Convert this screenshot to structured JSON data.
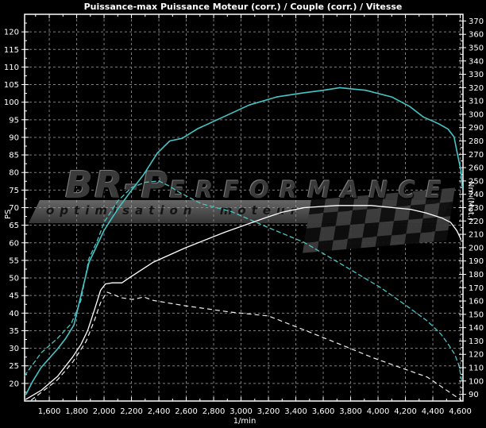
{
  "watermark": {
    "brand_prefix": "BR-P",
    "brand_suffix": "ERFORMANCE",
    "tagline": "optimisation moteur"
  },
  "colors": {
    "background": "#000000",
    "frame": "#ffffff",
    "grid": "#7d7d7d",
    "torque": "#45c6c6",
    "power": "#ffffff"
  },
  "chart_data": {
    "type": "line",
    "title": "Puissance-max Puissance Moteur (corr.) / Couple (corr.) / Vitesse",
    "x": {
      "unit": "1/min",
      "min": 1420,
      "max": 4620,
      "tick_min": 1600,
      "tick_max": 4600,
      "tick_step": 200,
      "minor_step": 100
    },
    "y_left": {
      "unit": "PS",
      "min": 15,
      "max": 125,
      "tick_min": 20,
      "tick_max": 120,
      "tick_step": 5,
      "minor_step": 2.5
    },
    "y_right": {
      "unit": "Nm (Mot.)",
      "min": 85,
      "max": 375,
      "tick_min": 90,
      "tick_max": 370,
      "tick_step": 10,
      "minor_step": 5
    },
    "grid": {
      "dash": "3 3",
      "legend": "none"
    },
    "series": [
      {
        "id": "couple-corr-solid",
        "name": "Couple (corr.)",
        "style": "solid",
        "axis": "right",
        "color": "#45c6c6",
        "width": 1.6,
        "points": [
          [
            1430,
            90
          ],
          [
            1480,
            100
          ],
          [
            1540,
            110
          ],
          [
            1600,
            117
          ],
          [
            1660,
            124
          ],
          [
            1720,
            132
          ],
          [
            1780,
            142
          ],
          [
            1840,
            168
          ],
          [
            1890,
            189
          ],
          [
            1950,
            202
          ],
          [
            2000,
            213
          ],
          [
            2100,
            229
          ],
          [
            2200,
            243
          ],
          [
            2290,
            255
          ],
          [
            2390,
            271
          ],
          [
            2480,
            280
          ],
          [
            2570,
            282
          ],
          [
            2680,
            289
          ],
          [
            2870,
            298
          ],
          [
            3060,
            307
          ],
          [
            3260,
            313
          ],
          [
            3450,
            316
          ],
          [
            3600,
            318
          ],
          [
            3720,
            320
          ],
          [
            3910,
            318
          ],
          [
            4100,
            313
          ],
          [
            4230,
            306
          ],
          [
            4330,
            298
          ],
          [
            4440,
            293
          ],
          [
            4510,
            289
          ],
          [
            4555,
            283
          ],
          [
            4580,
            270
          ],
          [
            4605,
            258
          ],
          [
            4615,
            245
          ]
        ]
      },
      {
        "id": "couple-corr-dashed",
        "name": "Couple (corr.)",
        "style": "dashed",
        "axis": "right",
        "color": "#45c6c6",
        "width": 1.3,
        "dash": "5 4",
        "points": [
          [
            1420,
            104
          ],
          [
            1540,
            121
          ],
          [
            1660,
            132
          ],
          [
            1760,
            143
          ],
          [
            1830,
            160
          ],
          [
            1890,
            192
          ],
          [
            1950,
            205
          ],
          [
            2000,
            219
          ],
          [
            2100,
            235
          ],
          [
            2200,
            245
          ],
          [
            2300,
            249
          ],
          [
            2400,
            250
          ],
          [
            2480,
            246
          ],
          [
            2540,
            242
          ],
          [
            2710,
            233
          ],
          [
            2930,
            227
          ],
          [
            3200,
            215
          ],
          [
            3460,
            204
          ],
          [
            3710,
            189
          ],
          [
            4020,
            170
          ],
          [
            4200,
            157
          ],
          [
            4360,
            145
          ],
          [
            4460,
            135
          ],
          [
            4510,
            128
          ],
          [
            4560,
            120
          ],
          [
            4590,
            112
          ],
          [
            4610,
            101
          ]
        ]
      },
      {
        "id": "puissance-corr-solid",
        "name": "Puissance Moteur (corr.)",
        "style": "solid",
        "axis": "left",
        "color": "#ffffff",
        "width": 1.3,
        "points": [
          [
            1430,
            15.5
          ],
          [
            1540,
            18
          ],
          [
            1660,
            22
          ],
          [
            1770,
            27.5
          ],
          [
            1830,
            31
          ],
          [
            1880,
            35
          ],
          [
            1930,
            41
          ],
          [
            1975,
            46.5
          ],
          [
            2010,
            48.3
          ],
          [
            2060,
            48.6
          ],
          [
            2130,
            48.6
          ],
          [
            2190,
            50.2
          ],
          [
            2360,
            54.5
          ],
          [
            2590,
            58.5
          ],
          [
            2880,
            63
          ],
          [
            3170,
            67
          ],
          [
            3300,
            68.7
          ],
          [
            3460,
            70
          ],
          [
            3700,
            70.6
          ],
          [
            3950,
            70.6
          ],
          [
            4240,
            69.5
          ],
          [
            4350,
            68.5
          ],
          [
            4470,
            67
          ],
          [
            4530,
            65.8
          ],
          [
            4575,
            63.5
          ],
          [
            4605,
            61
          ]
        ]
      },
      {
        "id": "puissance-corr-dashed",
        "name": "Puissance Moteur (corr.)",
        "style": "dashed",
        "axis": "left",
        "color": "#efefef",
        "width": 1.2,
        "dash": "5 5",
        "points": [
          [
            1470,
            15.3
          ],
          [
            1660,
            21
          ],
          [
            1770,
            26
          ],
          [
            1870,
            32
          ],
          [
            1930,
            38
          ],
          [
            1975,
            43
          ],
          [
            2020,
            46
          ],
          [
            2070,
            45.3
          ],
          [
            2120,
            44.4
          ],
          [
            2210,
            43.9
          ],
          [
            2290,
            44.6
          ],
          [
            2360,
            43.6
          ],
          [
            2590,
            42.1
          ],
          [
            2920,
            40.3
          ],
          [
            3200,
            39.2
          ],
          [
            3500,
            34.6
          ],
          [
            3750,
            30.7
          ],
          [
            3970,
            27.2
          ],
          [
            4200,
            24
          ],
          [
            4360,
            21.8
          ],
          [
            4605,
            15.3
          ]
        ]
      }
    ]
  }
}
